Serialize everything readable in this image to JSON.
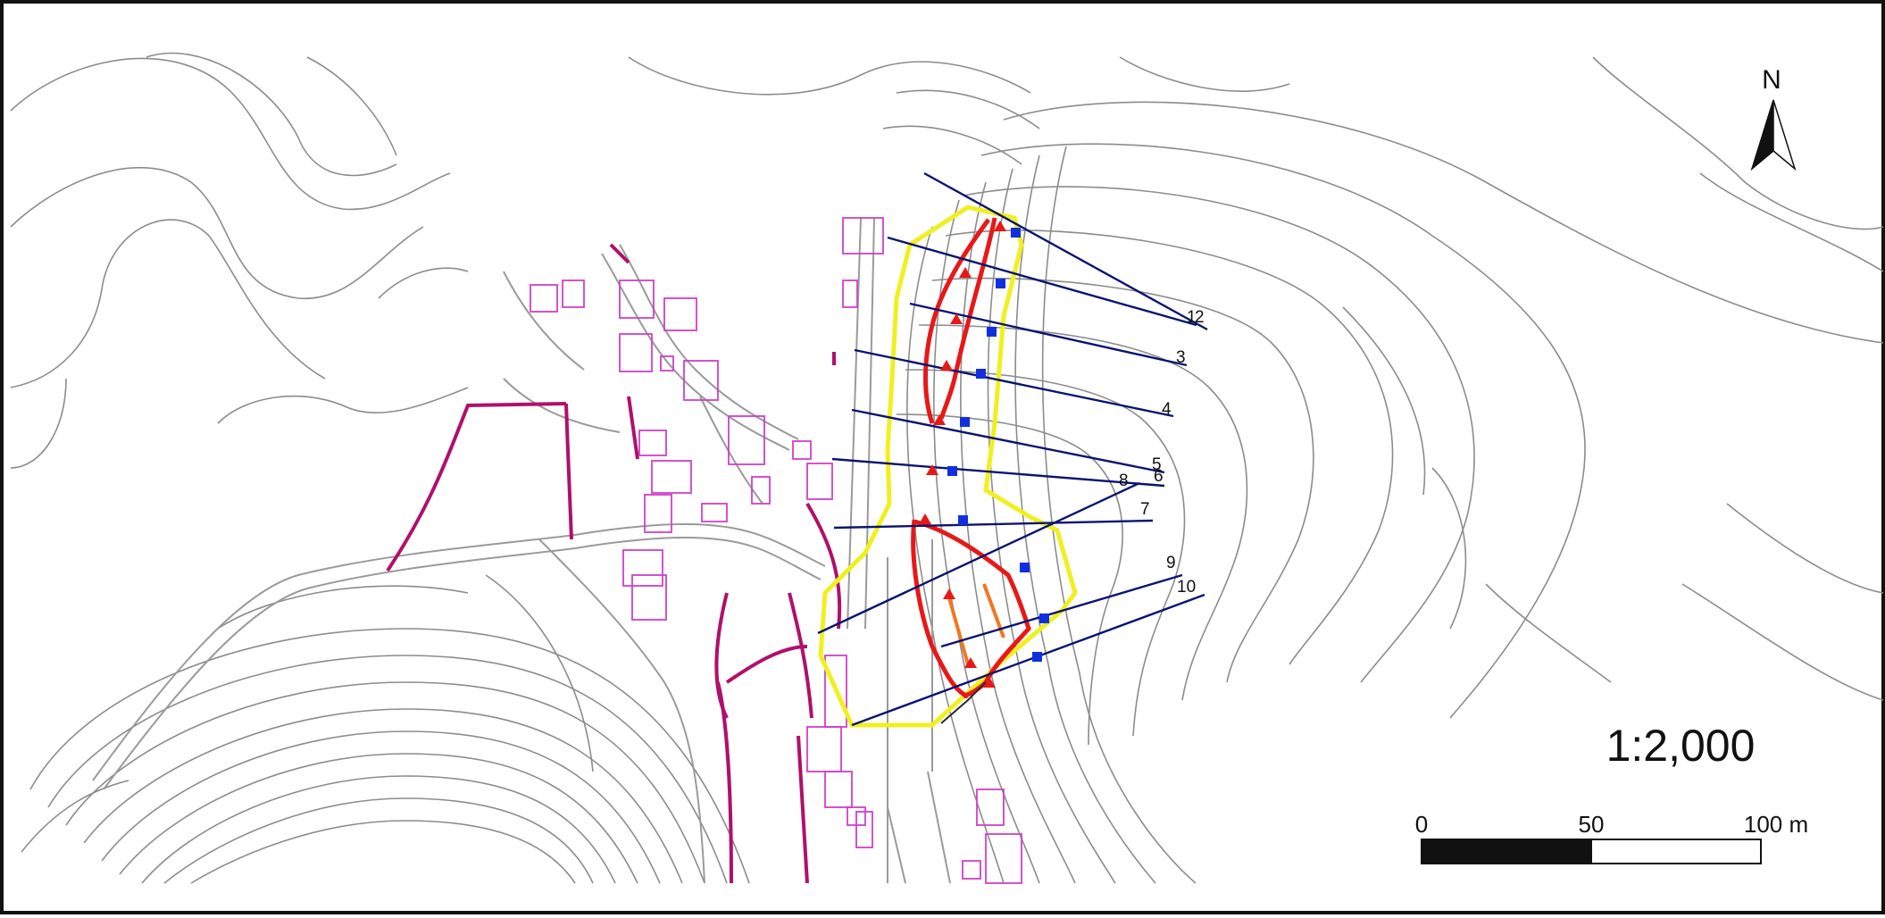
{
  "map": {
    "scale_text": "1:2,000",
    "north_label": "N",
    "scale_bar": {
      "ticks": [
        "0",
        "50",
        "100 m"
      ]
    },
    "section_lines": [
      {
        "label": "1"
      },
      {
        "label": "2"
      },
      {
        "label": "3"
      },
      {
        "label": "4"
      },
      {
        "label": "5"
      },
      {
        "label": "6"
      },
      {
        "label": "7"
      },
      {
        "label": "8"
      },
      {
        "label": "9"
      },
      {
        "label": "10"
      }
    ],
    "colors": {
      "contour": "#8c8c8c",
      "road": "#9a9a9a",
      "building": "#d040c8",
      "wall": "#b0106a",
      "section_line": "#0a1470",
      "survey_marker": "#1030e0",
      "landslide_boundary": "#e81818",
      "influence_zone": "#f0f020",
      "scarp": "#f07820"
    },
    "icons": {
      "north_arrow": "north-arrow-icon",
      "triangle_marker": "red-triangle-icon",
      "square_marker": "blue-square-icon"
    }
  }
}
